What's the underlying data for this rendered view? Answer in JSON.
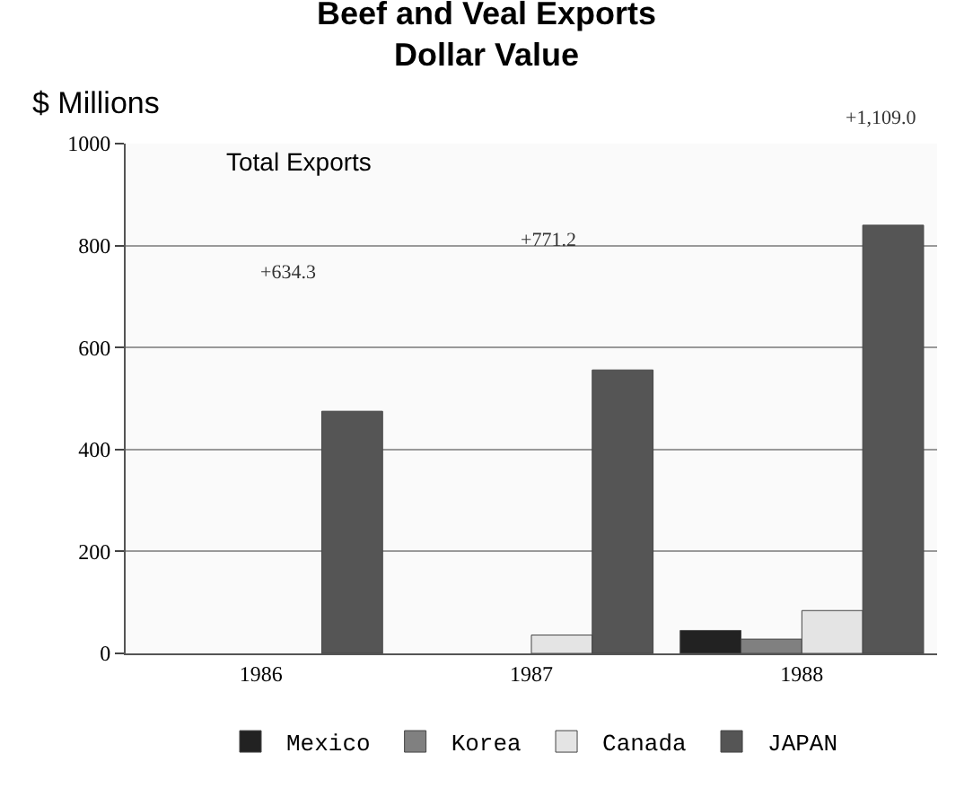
{
  "chart_data": {
    "type": "bar",
    "title": "Beef and Veal Exports\nDollar Value",
    "ylabel": "$ Millions",
    "categories": [
      "1986",
      "1987",
      "1988"
    ],
    "series": [
      {
        "name": "Mexico",
        "color": "#222222",
        "values": [
          null,
          null,
          45
        ]
      },
      {
        "name": "Korea",
        "color": "#808080",
        "values": [
          null,
          null,
          28
        ]
      },
      {
        "name": "Canada",
        "color": "#e4e4e4",
        "values": [
          null,
          36,
          84
        ]
      },
      {
        "name": "JAPAN",
        "color": "#555555",
        "values": [
          475,
          556,
          840
        ]
      }
    ],
    "ylim": [
      0,
      1000
    ],
    "yticks": [
      0,
      200,
      400,
      600,
      800,
      1000
    ],
    "grid": "y",
    "legend": "bottom",
    "annotations": [
      "Total Exports",
      "+634.3",
      "+771.2",
      "+1,109.0"
    ]
  }
}
